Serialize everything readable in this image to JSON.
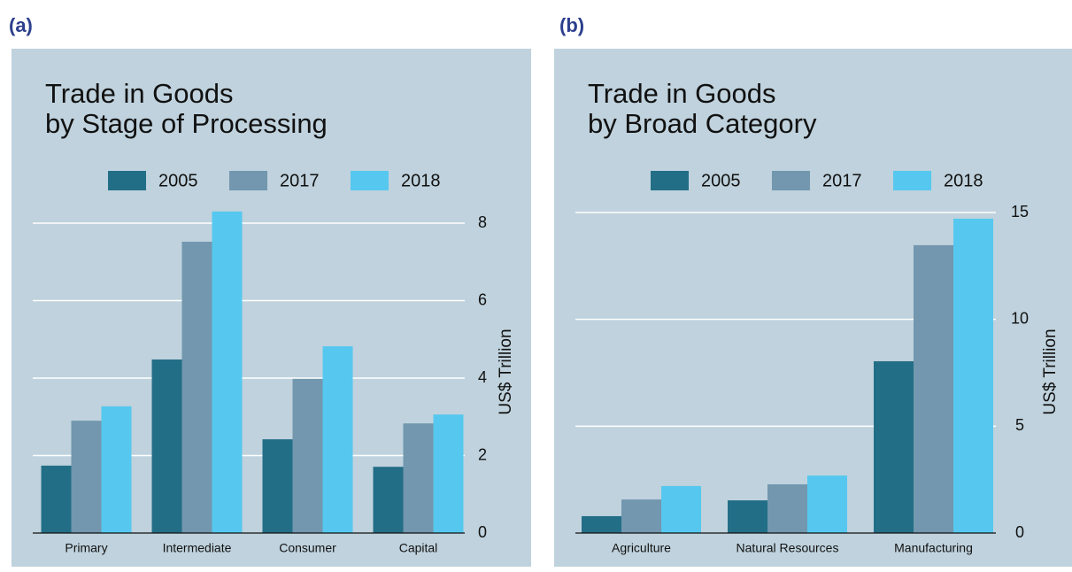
{
  "chart_data": [
    {
      "type": "bar",
      "panel_label": "(a)",
      "title": [
        "Trade in Goods",
        "by Stage of Processing"
      ],
      "y_label": "US$ Trillion",
      "categories": [
        "Primary",
        "Intermediate",
        "Consumer",
        "Capital"
      ],
      "series": [
        {
          "name": "2005",
          "color": "#236e87",
          "values": [
            1.74,
            4.48,
            2.42,
            1.71
          ]
        },
        {
          "name": "2017",
          "color": "#7297ae",
          "values": [
            2.9,
            7.52,
            3.98,
            2.83
          ]
        },
        {
          "name": "2018",
          "color": "#56c8ef",
          "values": [
            3.27,
            8.3,
            4.82,
            3.06
          ]
        }
      ],
      "ylim": [
        0,
        8.5
      ],
      "yticks": [
        0,
        2,
        4,
        6,
        8
      ],
      "grid": true
    },
    {
      "type": "bar",
      "panel_label": "(b)",
      "title": [
        "Trade in Goods",
        "by Broad Category"
      ],
      "y_label": "US$ Trillion",
      "categories": [
        "Agriculture",
        "Natural Resources",
        "Manufacturing"
      ],
      "series": [
        {
          "name": "2005",
          "color": "#236e87",
          "values": [
            0.79,
            1.53,
            8.04
          ]
        },
        {
          "name": "2017",
          "color": "#7297ae",
          "values": [
            1.57,
            2.28,
            13.47
          ]
        },
        {
          "name": "2018",
          "color": "#56c8ef",
          "values": [
            2.2,
            2.69,
            14.71
          ]
        }
      ],
      "ylim": [
        0,
        15.5
      ],
      "yticks": [
        0,
        5,
        10,
        15
      ],
      "grid": true
    }
  ]
}
